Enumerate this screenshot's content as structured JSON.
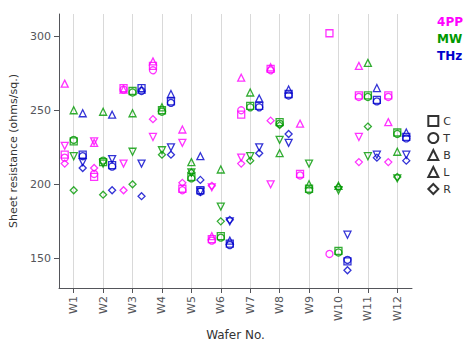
{
  "chart_data": {
    "type": "scatter",
    "xlabel": "Wafer No.",
    "ylabel": "Sheet resistance (ohms/sq.)",
    "categories": [
      "W1",
      "W2",
      "W3",
      "W4",
      "W5",
      "W6",
      "W7",
      "W8",
      "W9",
      "W10",
      "W11",
      "W12"
    ],
    "ylim": [
      130,
      315
    ],
    "yticks": [
      150,
      200,
      250,
      300
    ],
    "grid": "x",
    "legend": "right",
    "positions": [
      {
        "name": "C",
        "marker": "square"
      },
      {
        "name": "T",
        "marker": "circle"
      },
      {
        "name": "B",
        "marker": "triangle-up"
      },
      {
        "name": "L",
        "marker": "triangle-down"
      },
      {
        "name": "R",
        "marker": "diamond"
      }
    ],
    "series": [
      {
        "name": "4PP",
        "color": "#ff00ff",
        "values": {
          "C": [
            220,
            205,
            265,
            280,
            197,
            163,
            247,
            278,
            207,
            302,
            260,
            260
          ],
          "T": [
            218,
            207,
            264,
            277,
            196,
            162,
            250,
            277,
            206,
            153,
            259,
            259
          ],
          "B": [
            268,
            228,
            264,
            283,
            237,
            165,
            272,
            279,
            241,
            null,
            280,
            242
          ],
          "L": [
            226,
            229,
            214,
            232,
            228,
            198,
            218,
            200,
            null,
            null,
            232,
            null
          ],
          "R": [
            214,
            211,
            196,
            244,
            201,
            199,
            214,
            243,
            null,
            null,
            215,
            215
          ]
        }
      },
      {
        "name": "MW",
        "color": "#009900",
        "values": {
          "C": [
            229,
            215,
            263,
            250,
            205,
            165,
            253,
            242,
            197,
            155,
            260,
            235
          ],
          "T": [
            230,
            216,
            262,
            249,
            204,
            164,
            252,
            241,
            196,
            154,
            259,
            234
          ],
          "B": [
            250,
            249,
            248,
            252,
            215,
            210,
            262,
            221,
            200,
            199,
            282,
            222
          ],
          "L": [
            219,
            214,
            222,
            223,
            208,
            185,
            219,
            230,
            214,
            196,
            219,
            204
          ],
          "R": [
            196,
            193,
            200,
            220,
            208,
            175,
            216,
            240,
            null,
            198,
            239,
            205
          ]
        }
      },
      {
        "name": "THz",
        "color": "#0000cc",
        "values": {
          "C": [
            220,
            213,
            265,
            256,
            196,
            160,
            253,
            261,
            null,
            148,
            257,
            232
          ],
          "T": [
            219,
            212,
            263,
            255,
            195,
            159,
            252,
            260,
            null,
            149,
            256,
            231
          ],
          "B": [
            248,
            247,
            264,
            261,
            219,
            162,
            258,
            264,
            null,
            null,
            265,
            235
          ],
          "L": [
            215,
            217,
            214,
            225,
            195,
            175,
            225,
            228,
            null,
            166,
            220,
            220
          ],
          "R": [
            211,
            196,
            192,
            220,
            203,
            176,
            221,
            234,
            null,
            142,
            218,
            216
          ]
        }
      }
    ]
  }
}
